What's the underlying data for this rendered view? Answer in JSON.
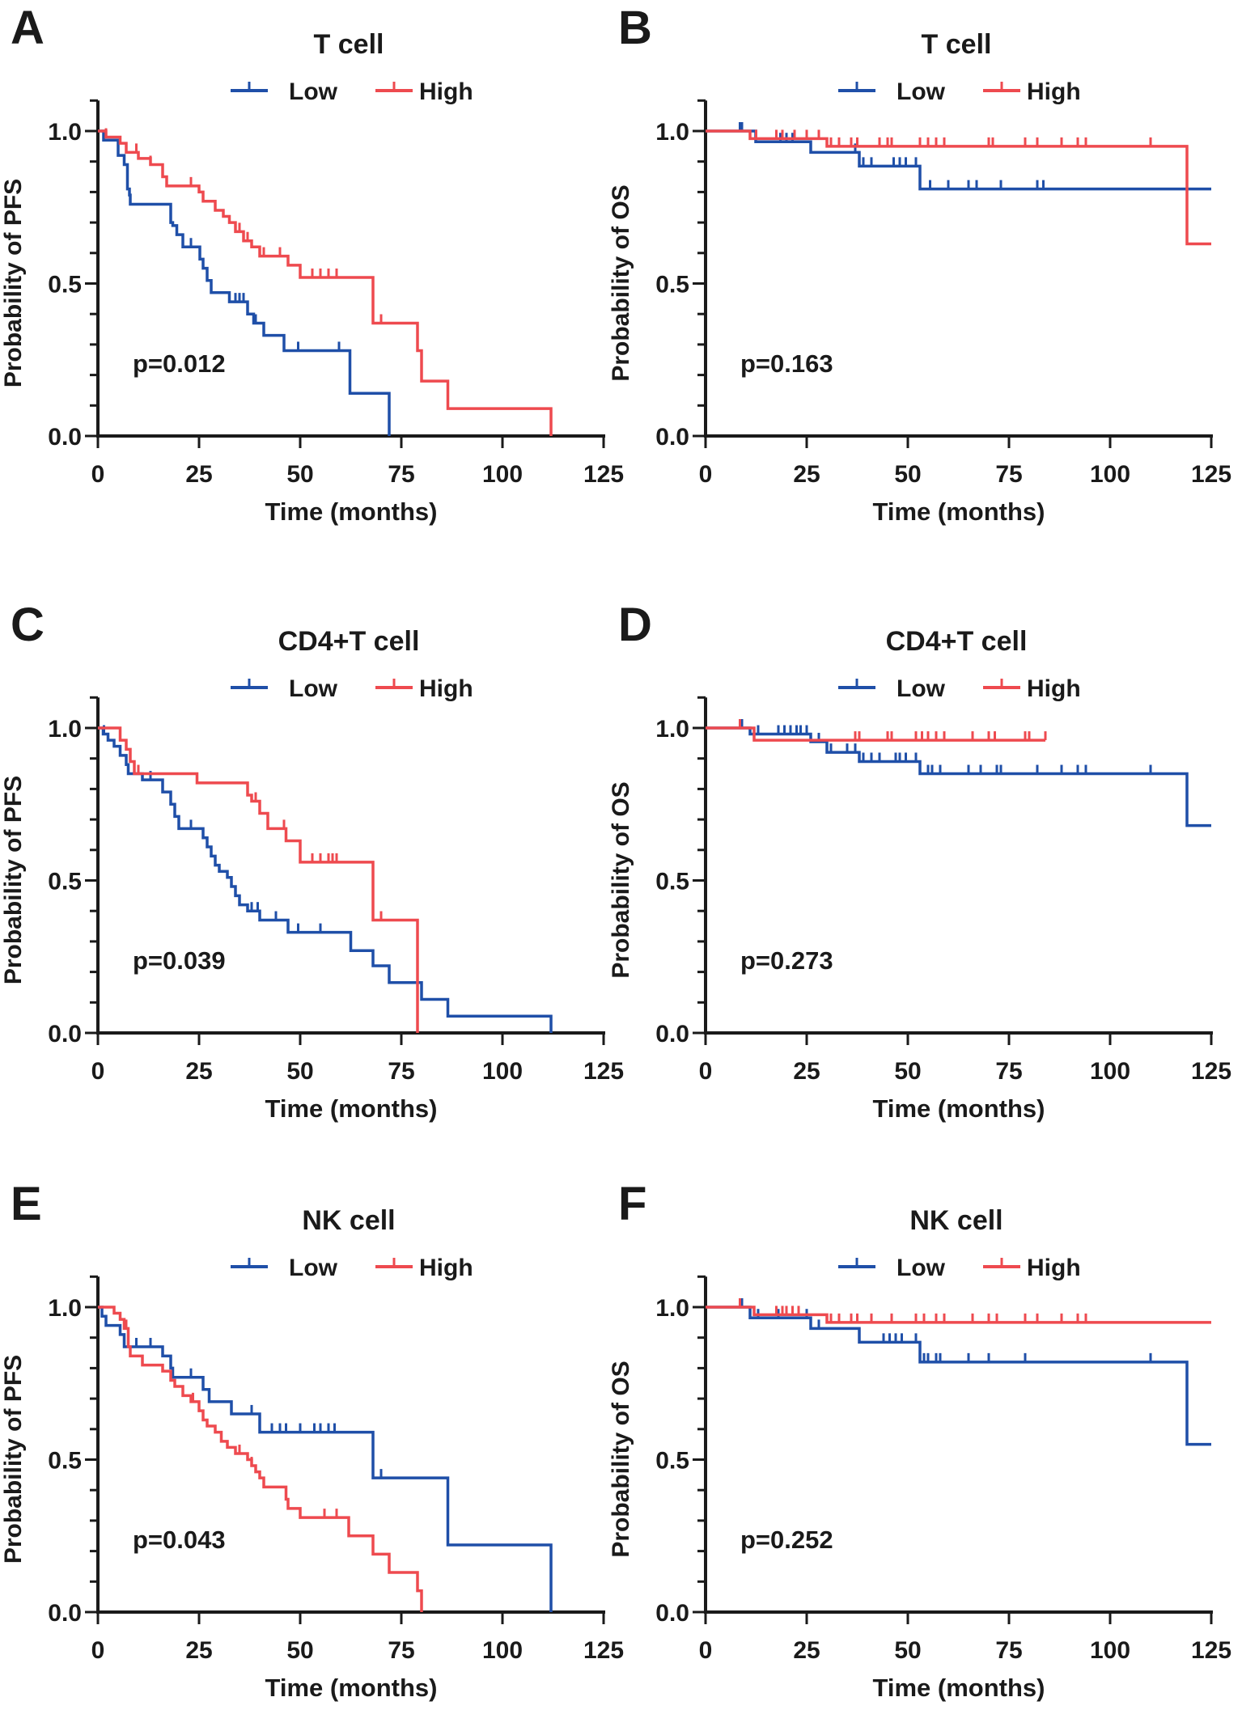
{
  "colors": {
    "low": "#1f4fa8",
    "high": "#ee4a4f",
    "axis": "#1a1a1a"
  },
  "chart_data": [
    {
      "type": "line",
      "subtype": "kaplan-meier-step",
      "panel": "A",
      "title": "T cell",
      "ylabel": "Probability of PFS",
      "xlabel": "Time (months)",
      "p_value": "p=0.012",
      "xlim": [
        0,
        125
      ],
      "ylim": [
        0,
        1.1
      ],
      "grid": false,
      "legend": "top",
      "xticks": [
        "0",
        "25",
        "50",
        "75",
        "100",
        "125"
      ],
      "yticks": [
        "0.0",
        "0.5",
        "1.0"
      ],
      "series": [
        {
          "name": "Low",
          "color": "#1f4fa8",
          "end": 72,
          "steps": [
            [
              1.4,
              0.97
            ],
            [
              5,
              0.92
            ],
            [
              6.5,
              0.89
            ],
            [
              7.3,
              0.81
            ],
            [
              7.8,
              0.79
            ],
            [
              8,
              0.76
            ],
            [
              18,
              0.7
            ],
            [
              18.5,
              0.69
            ],
            [
              19.5,
              0.66
            ],
            [
              21,
              0.62
            ],
            [
              25.2,
              0.58
            ],
            [
              26,
              0.55
            ],
            [
              27,
              0.51
            ],
            [
              28,
              0.47
            ],
            [
              32.5,
              0.44
            ],
            [
              37,
              0.4
            ],
            [
              38.5,
              0.37
            ],
            [
              41,
              0.33
            ],
            [
              46,
              0.28
            ],
            [
              62.3,
              0.14
            ],
            [
              72,
              0
            ]
          ],
          "censored": [
            18,
            23,
            34,
            35,
            36,
            37,
            39,
            49.5,
            59.6
          ]
        },
        {
          "name": "High",
          "color": "#ee4a4f",
          "end": 112,
          "steps": [
            [
              2,
              0.98
            ],
            [
              5.5,
              0.96
            ],
            [
              7,
              0.93
            ],
            [
              10,
              0.91
            ],
            [
              13,
              0.89
            ],
            [
              16,
              0.85
            ],
            [
              17,
              0.82
            ],
            [
              25,
              0.8
            ],
            [
              26,
              0.77
            ],
            [
              29,
              0.74
            ],
            [
              31,
              0.72
            ],
            [
              32.5,
              0.7
            ],
            [
              34,
              0.67
            ],
            [
              36,
              0.64
            ],
            [
              38,
              0.62
            ],
            [
              40,
              0.59
            ],
            [
              47,
              0.56
            ],
            [
              50,
              0.52
            ],
            [
              68,
              0.37
            ],
            [
              79,
              0.28
            ],
            [
              80,
              0.18
            ],
            [
              86.5,
              0.09
            ],
            [
              112,
              0
            ]
          ],
          "censored": [
            2,
            9.5,
            13,
            23,
            29,
            35,
            37,
            41,
            45,
            47,
            53,
            55,
            57,
            59,
            70
          ]
        }
      ]
    },
    {
      "type": "line",
      "subtype": "kaplan-meier-step",
      "panel": "B",
      "title": "T cell",
      "ylabel": "Probability of OS",
      "xlabel": "Time (months)",
      "p_value": "p=0.163",
      "xlim": [
        0,
        125
      ],
      "ylim": [
        0,
        1.1
      ],
      "grid": false,
      "legend": "top",
      "xticks": [
        "0",
        "25",
        "50",
        "75",
        "100",
        "125"
      ],
      "yticks": [
        "0.0",
        "0.5",
        "1.0"
      ],
      "series": [
        {
          "name": "Low",
          "color": "#1f4fa8",
          "end": 125,
          "steps": [
            [
              12.4,
              0.965
            ],
            [
              26,
              0.93
            ],
            [
              38,
              0.885
            ],
            [
              53,
              0.81
            ]
          ],
          "censored": [
            8.5,
            9,
            18.5,
            20,
            21.5,
            37,
            39,
            41,
            46.5,
            48,
            49.5,
            52,
            55.5,
            60,
            65,
            67,
            73,
            82,
            83.5
          ]
        },
        {
          "name": "High",
          "color": "#ee4a4f",
          "end": 125,
          "steps": [
            [
              11,
              0.975
            ],
            [
              30,
              0.95
            ],
            [
              119,
              0.63
            ]
          ],
          "censored": [
            12.5,
            17.5,
            19,
            22,
            25,
            28,
            31,
            33,
            36,
            37.5,
            43,
            45,
            46,
            53,
            55,
            57,
            59,
            70,
            71,
            79,
            82,
            88,
            92,
            94,
            110
          ]
        }
      ]
    },
    {
      "type": "line",
      "subtype": "kaplan-meier-step",
      "panel": "C",
      "title": "CD4+T cell",
      "ylabel": "Probability of PFS",
      "xlabel": "Time (months)",
      "p_value": "p=0.039",
      "xlim": [
        0,
        125
      ],
      "ylim": [
        0,
        1.1
      ],
      "grid": false,
      "legend": "top",
      "xticks": [
        "0",
        "25",
        "50",
        "75",
        "100",
        "125"
      ],
      "yticks": [
        "0.0",
        "0.5",
        "1.0"
      ],
      "series": [
        {
          "name": "Low",
          "color": "#1f4fa8",
          "end": 112,
          "steps": [
            [
              1.3,
              0.98
            ],
            [
              2.5,
              0.96
            ],
            [
              4,
              0.94
            ],
            [
              5.5,
              0.91
            ],
            [
              7,
              0.88
            ],
            [
              7.5,
              0.85
            ],
            [
              11,
              0.83
            ],
            [
              16,
              0.79
            ],
            [
              18,
              0.75
            ],
            [
              19,
              0.71
            ],
            [
              20,
              0.67
            ],
            [
              26,
              0.64
            ],
            [
              27,
              0.61
            ],
            [
              28,
              0.58
            ],
            [
              29,
              0.55
            ],
            [
              30,
              0.53
            ],
            [
              32,
              0.51
            ],
            [
              33,
              0.48
            ],
            [
              34,
              0.45
            ],
            [
              35,
              0.42
            ],
            [
              37,
              0.4
            ],
            [
              40,
              0.37
            ],
            [
              47,
              0.33
            ],
            [
              62.5,
              0.27
            ],
            [
              68,
              0.22
            ],
            [
              72,
              0.165
            ],
            [
              80,
              0.11
            ],
            [
              86.5,
              0.055
            ],
            [
              112,
              0
            ]
          ],
          "censored": [
            1.5,
            13,
            18,
            23,
            35,
            38,
            39.5,
            44,
            49.5,
            55
          ]
        },
        {
          "name": "High",
          "color": "#ee4a4f",
          "end": 79,
          "steps": [
            [
              5.5,
              0.96
            ],
            [
              7,
              0.93
            ],
            [
              8,
              0.89
            ],
            [
              9,
              0.85
            ],
            [
              24.5,
              0.82
            ],
            [
              37,
              0.78
            ],
            [
              38,
              0.76
            ],
            [
              40,
              0.72
            ],
            [
              42,
              0.67
            ],
            [
              46.5,
              0.63
            ],
            [
              50,
              0.56
            ],
            [
              68,
              0.37
            ],
            [
              79,
              0
            ]
          ],
          "censored": [
            10,
            37,
            39,
            46,
            53,
            55,
            57,
            58,
            59,
            70
          ]
        }
      ]
    },
    {
      "type": "line",
      "subtype": "kaplan-meier-step",
      "panel": "D",
      "title": "CD4+T cell",
      "ylabel": "Probability of OS",
      "xlabel": "Time (months)",
      "p_value": "p=0.273",
      "xlim": [
        0,
        125
      ],
      "ylim": [
        0,
        1.1
      ],
      "grid": false,
      "legend": "top",
      "xticks": [
        "0",
        "25",
        "50",
        "75",
        "100",
        "125"
      ],
      "yticks": [
        "0.0",
        "0.5",
        "1.0"
      ],
      "series": [
        {
          "name": "Low",
          "color": "#1f4fa8",
          "end": 125,
          "steps": [
            [
              11,
              0.98
            ],
            [
              26,
              0.955
            ],
            [
              30,
              0.92
            ],
            [
              38,
              0.89
            ],
            [
              53,
              0.85
            ],
            [
              119,
              0.68
            ]
          ],
          "censored": [
            9,
            13,
            18,
            19.5,
            21,
            22.5,
            23.5,
            25,
            28,
            31,
            35,
            37,
            39,
            41,
            43,
            47,
            48,
            49.5,
            52,
            55,
            56,
            58,
            65,
            68,
            72,
            73,
            82,
            88,
            92,
            94,
            110
          ]
        },
        {
          "name": "High",
          "color": "#ee4a4f",
          "end": 84,
          "steps": [
            [
              12,
              0.96
            ]
          ],
          "censored": [
            8.5,
            37,
            38,
            45,
            46,
            52,
            53.5,
            55,
            57,
            59,
            66,
            70,
            71.5,
            79,
            80,
            84
          ]
        }
      ]
    },
    {
      "type": "line",
      "subtype": "kaplan-meier-step",
      "panel": "E",
      "title": "NK cell",
      "ylabel": "Probability of PFS",
      "xlabel": "Time (months)",
      "p_value": "p=0.043",
      "xlim": [
        0,
        125
      ],
      "ylim": [
        0,
        1.1
      ],
      "grid": false,
      "legend": "top",
      "xticks": [
        "0",
        "25",
        "50",
        "75",
        "100",
        "125"
      ],
      "yticks": [
        "0.0",
        "0.5",
        "1.0"
      ],
      "series": [
        {
          "name": "Low",
          "color": "#1f4fa8",
          "end": 112,
          "steps": [
            [
              1,
              0.97
            ],
            [
              2,
              0.94
            ],
            [
              5.5,
              0.91
            ],
            [
              6.5,
              0.87
            ],
            [
              16,
              0.84
            ],
            [
              18,
              0.8
            ],
            [
              18.5,
              0.77
            ],
            [
              26,
              0.73
            ],
            [
              27.5,
              0.69
            ],
            [
              33,
              0.65
            ],
            [
              40,
              0.59
            ],
            [
              68,
              0.44
            ],
            [
              86.5,
              0.22
            ],
            [
              112,
              0
            ]
          ],
          "censored": [
            9.5,
            13,
            18,
            23,
            38,
            43,
            45,
            46.5,
            50,
            53.5,
            55,
            57,
            58.5,
            70
          ]
        },
        {
          "name": "High",
          "color": "#ee4a4f",
          "end": 80,
          "steps": [
            [
              4,
              0.98
            ],
            [
              5.5,
              0.96
            ],
            [
              6.5,
              0.93
            ],
            [
              7.5,
              0.87
            ],
            [
              8,
              0.84
            ],
            [
              11,
              0.81
            ],
            [
              16,
              0.79
            ],
            [
              18,
              0.76
            ],
            [
              19,
              0.74
            ],
            [
              21,
              0.71
            ],
            [
              23,
              0.69
            ],
            [
              25,
              0.66
            ],
            [
              26,
              0.63
            ],
            [
              27,
              0.61
            ],
            [
              29,
              0.59
            ],
            [
              30.5,
              0.56
            ],
            [
              32,
              0.54
            ],
            [
              34,
              0.52
            ],
            [
              37,
              0.5
            ],
            [
              38,
              0.48
            ],
            [
              39,
              0.46
            ],
            [
              40,
              0.44
            ],
            [
              41,
              0.41
            ],
            [
              46.5,
              0.37
            ],
            [
              47,
              0.34
            ],
            [
              50,
              0.31
            ],
            [
              62,
              0.25
            ],
            [
              68,
              0.19
            ],
            [
              72,
              0.13
            ],
            [
              79,
              0.07
            ],
            [
              80,
              0
            ]
          ],
          "censored": [
            7,
            23.5,
            35,
            38,
            46.5,
            56,
            59
          ]
        }
      ]
    },
    {
      "type": "line",
      "subtype": "kaplan-meier-step",
      "panel": "F",
      "title": "NK cell",
      "ylabel": "Probability of OS",
      "xlabel": "Time (months)",
      "p_value": "p=0.252",
      "xlim": [
        0,
        125
      ],
      "ylim": [
        0,
        1.1
      ],
      "grid": false,
      "legend": "top",
      "xticks": [
        "0",
        "25",
        "50",
        "75",
        "100",
        "125"
      ],
      "yticks": [
        "0.0",
        "0.5",
        "1.0"
      ],
      "series": [
        {
          "name": "Low",
          "color": "#1f4fa8",
          "end": 125,
          "steps": [
            [
              11,
              0.965
            ],
            [
              26,
              0.93
            ],
            [
              38,
              0.885
            ],
            [
              53,
              0.82
            ],
            [
              119,
              0.55
            ]
          ],
          "censored": [
            9,
            13,
            18,
            25,
            28,
            44,
            45.5,
            47,
            48.5,
            52,
            54,
            55,
            57,
            58,
            65,
            70,
            79,
            110
          ]
        },
        {
          "name": "High",
          "color": "#ee4a4f",
          "end": 125,
          "steps": [
            [
              12,
              0.975
            ],
            [
              30,
              0.95
            ]
          ],
          "censored": [
            8.5,
            17.5,
            19,
            20,
            21.5,
            23,
            31,
            33,
            36,
            37.5,
            41,
            46,
            52,
            54,
            57,
            59,
            66,
            70,
            72,
            79,
            82,
            88,
            92,
            94
          ]
        }
      ]
    }
  ]
}
